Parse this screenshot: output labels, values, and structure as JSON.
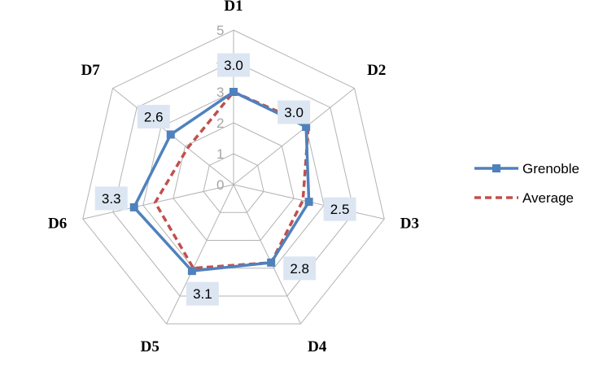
{
  "chart_data": {
    "type": "radar",
    "categories": [
      "D1",
      "D2",
      "D3",
      "D4",
      "D5",
      "D6",
      "D7"
    ],
    "range": [
      0,
      5
    ],
    "ring_labels": [
      "0",
      "1",
      "2",
      "3",
      "4",
      "5"
    ],
    "series": [
      {
        "name": "Grenoble",
        "values": [
          3.0,
          3.0,
          2.5,
          2.8,
          3.1,
          3.3,
          2.6
        ],
        "data_labels": [
          "3.0",
          "3.0",
          "2.5",
          "2.8",
          "3.1",
          "3.3",
          "2.6"
        ],
        "color": "#4f81bd",
        "style": "solid",
        "marker": "square"
      },
      {
        "name": "Average",
        "values": [
          3.0,
          3.1,
          2.3,
          2.8,
          3.0,
          2.6,
          1.9
        ],
        "color": "#c0504d",
        "style": "dashed",
        "marker": "none"
      }
    ],
    "grid": true,
    "legend": "right",
    "label_background": "#dce6f2"
  }
}
